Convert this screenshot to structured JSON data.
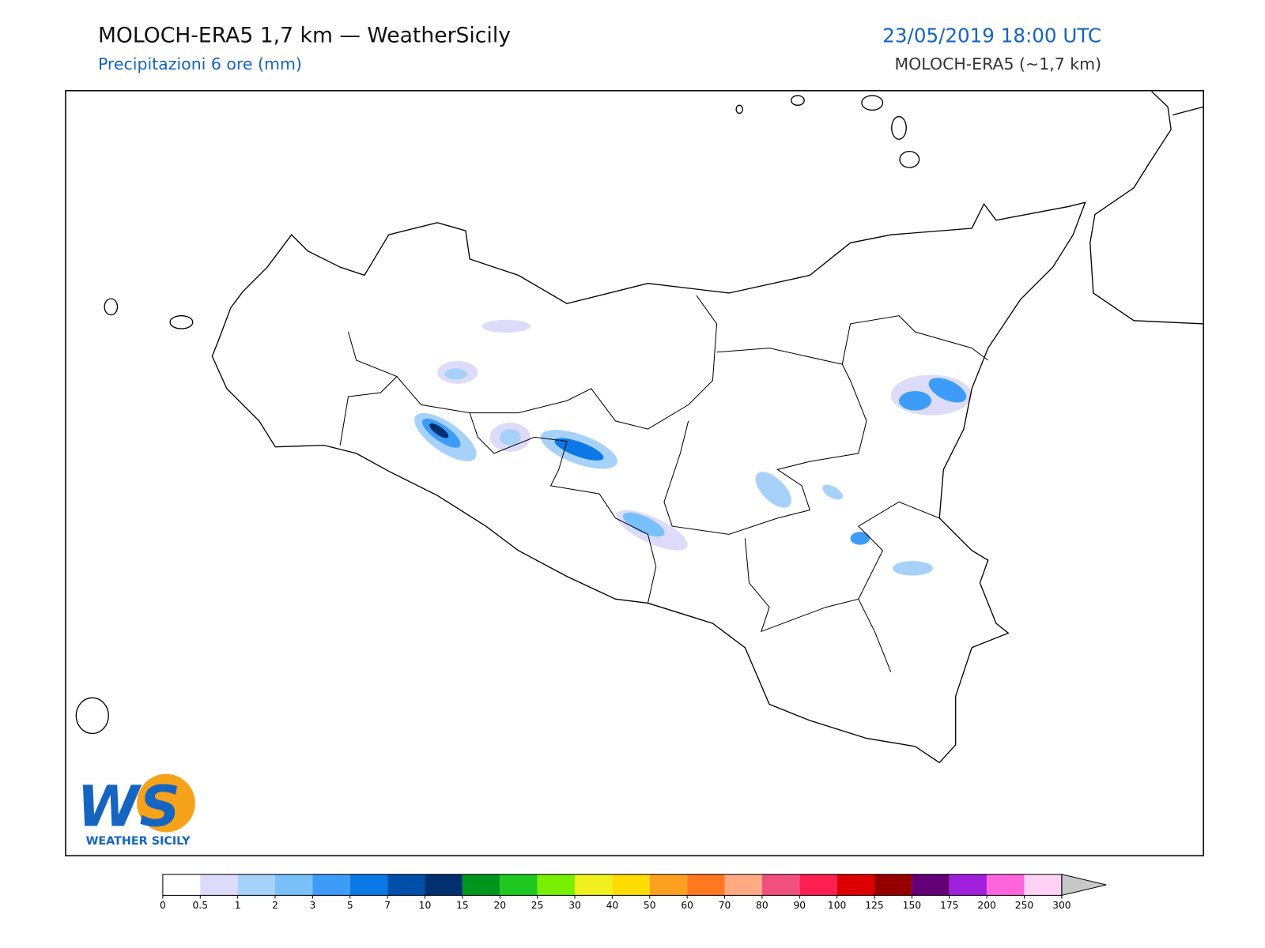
{
  "header": {
    "title": "MOLOCH-ERA5 1,7 km — WeatherSicily",
    "subtitle": "Precipitazioni 6 ore (mm)",
    "datetime": "23/05/2019 18:00 UTC",
    "model": "MOLOCH-ERA5 (~1,7 km)"
  },
  "logo": {
    "letters": "WS",
    "text": "WEATHER SICILY"
  },
  "colorbar": {
    "bounds": [
      0,
      0.5,
      1,
      2,
      3,
      5,
      7,
      10,
      15,
      20,
      25,
      30,
      40,
      50,
      60,
      70,
      80,
      90,
      100,
      125,
      150,
      175,
      200,
      250,
      300
    ],
    "colors": [
      "#ffffff",
      "#dcdcfa",
      "#a6d2fa",
      "#78c0fa",
      "#3c9cf8",
      "#0a78e6",
      "#0050aa",
      "#003070",
      "#00961e",
      "#1ec81e",
      "#78f000",
      "#f0f01e",
      "#ffdc00",
      "#ffa01e",
      "#ff7820",
      "#ffaa82",
      "#f05080",
      "#ff1e50",
      "#dc0000",
      "#960000",
      "#640078",
      "#a020dc",
      "#ff64dc",
      "#ffd2f5"
    ],
    "over_color": "#c8c8c8"
  }
}
